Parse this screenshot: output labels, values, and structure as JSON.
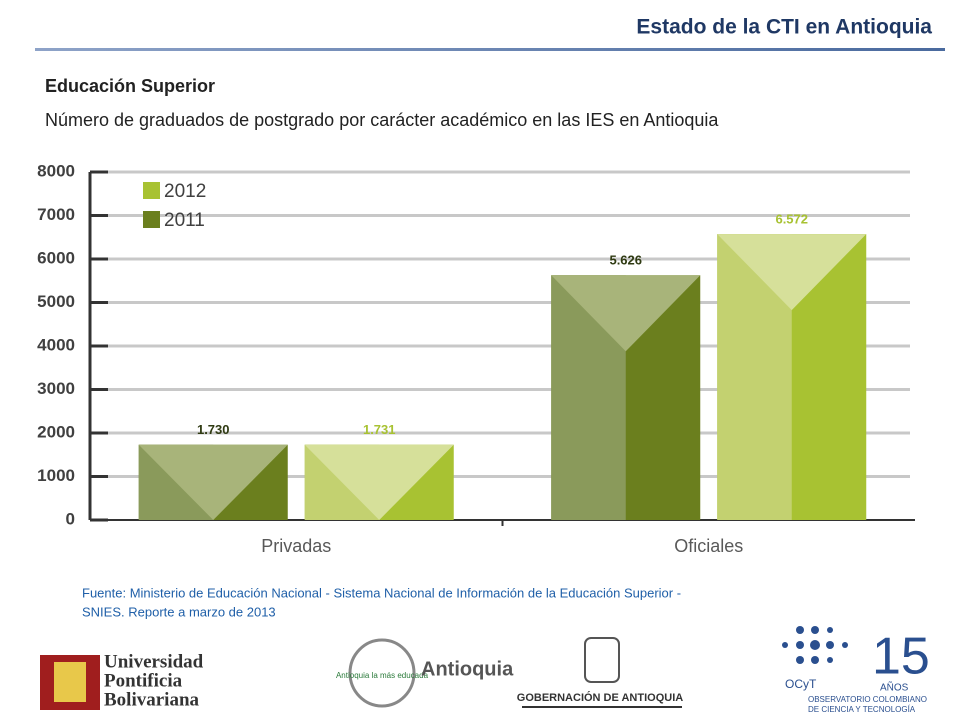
{
  "header": {
    "title": "Estado de la CTI en Antioquia"
  },
  "section": "Educación Superior",
  "chart_data": {
    "type": "bar",
    "title": "Número de graduados de postgrado por carácter académico en las IES en Antioquia",
    "categories": [
      "Privadas",
      "Oficiales"
    ],
    "series": [
      {
        "name": "2011",
        "color": "#6b7f1e",
        "values": [
          1730,
          5626
        ],
        "value_labels": [
          "1.730",
          "5.626"
        ]
      },
      {
        "name": "2012",
        "color": "#a8c232",
        "values": [
          1731,
          6572
        ],
        "value_labels": [
          "1.731",
          "6.572"
        ]
      }
    ],
    "ylim": [
      0,
      8000
    ],
    "yticks": [
      0,
      1000,
      2000,
      3000,
      4000,
      5000,
      6000,
      7000,
      8000
    ],
    "grid": true,
    "legend": "top-left"
  },
  "source": [
    "Fuente: Ministerio de Educación Nacional  - Sistema Nacional de Información de la Educación Superior -",
    "SNIES. Reporte a marzo de 2013"
  ],
  "logos": {
    "upb": [
      "Universidad",
      "Pontificia",
      "Bolivariana"
    ],
    "seal": "Antioquia la más educada",
    "antioquia": "Antioquia",
    "gobernacion": "GOBERNACIÓN DE ANTIOQUIA",
    "ocyt": {
      "number": "15",
      "years": "AÑOS",
      "acronym": "OCyT",
      "name": [
        "OBSERVATORIO COLOMBIANO",
        "DE CIENCIA Y TECNOLOGÍA"
      ]
    }
  }
}
